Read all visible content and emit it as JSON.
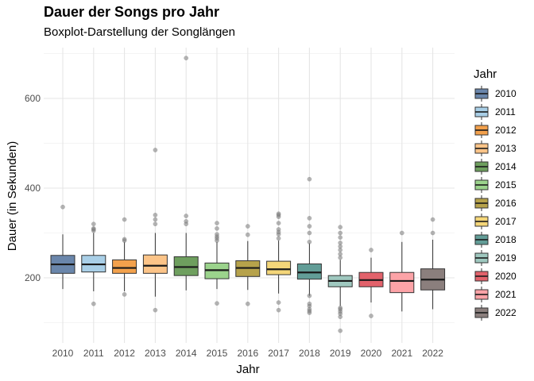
{
  "chart_data": {
    "type": "boxplot",
    "title": "Dauer der Songs pro Jahr",
    "subtitle": "Boxplot-Darstellung der Songlängen",
    "xlabel": "Jahr",
    "ylabel": "Dauer (in Sekunden)",
    "ylim": [
      70,
      710
    ],
    "yticks": [
      200,
      400,
      600
    ],
    "grid": true,
    "legend": {
      "title": "Jahr",
      "position": "right"
    },
    "categories": [
      "2010",
      "2011",
      "2012",
      "2013",
      "2014",
      "2015",
      "2016",
      "2017",
      "2018",
      "2019",
      "2020",
      "2021",
      "2022"
    ],
    "boxes": [
      {
        "name": "2010",
        "color": "#6a86ab",
        "lower": 175,
        "q1": 210,
        "median": 230,
        "q3": 250,
        "upper": 297,
        "outliers": [
          358
        ]
      },
      {
        "name": "2011",
        "color": "#a9cfe7",
        "lower": 170,
        "q1": 213,
        "median": 230,
        "q3": 250,
        "upper": 300,
        "outliers": [
          142,
          305,
          308,
          310,
          320
        ]
      },
      {
        "name": "2012",
        "color": "#f3a14c",
        "lower": 170,
        "q1": 210,
        "median": 222,
        "q3": 240,
        "upper": 280,
        "outliers": [
          163,
          283,
          286,
          330
        ]
      },
      {
        "name": "2013",
        "color": "#fcc488",
        "lower": 158,
        "q1": 210,
        "median": 227,
        "q3": 251,
        "upper": 300,
        "outliers": [
          128,
          320,
          330,
          340,
          485
        ]
      },
      {
        "name": "2014",
        "color": "#6e9f5e",
        "lower": 172,
        "q1": 205,
        "median": 224,
        "q3": 247,
        "upper": 300,
        "outliers": [
          320,
          326,
          338,
          690
        ]
      },
      {
        "name": "2015",
        "color": "#9bd38c",
        "lower": 175,
        "q1": 198,
        "median": 217,
        "q3": 233,
        "upper": 280,
        "outliers": [
          143,
          283,
          288,
          292,
          297,
          310,
          322
        ]
      },
      {
        "name": "2016",
        "color": "#b6a24b",
        "lower": 173,
        "q1": 203,
        "median": 222,
        "q3": 238,
        "upper": 282,
        "outliers": [
          142,
          296,
          315
        ]
      },
      {
        "name": "2017",
        "color": "#f4d679",
        "lower": 165,
        "q1": 207,
        "median": 219,
        "q3": 237,
        "upper": 283,
        "outliers": [
          128,
          145,
          288,
          297,
          302,
          308,
          322,
          336,
          340,
          343
        ]
      },
      {
        "name": "2018",
        "color": "#629d97",
        "lower": 160,
        "q1": 197,
        "median": 212,
        "q3": 231,
        "upper": 277,
        "outliers": [
          122,
          126,
          130,
          137,
          142,
          160,
          280,
          300,
          315,
          333,
          420
        ]
      },
      {
        "name": "2019",
        "color": "#9fc8bf",
        "lower": 137,
        "q1": 180,
        "median": 193,
        "q3": 205,
        "upper": 240,
        "outliers": [
          82,
          113,
          120,
          125,
          130,
          133,
          245,
          253,
          262,
          270,
          278,
          290,
          300,
          313
        ]
      },
      {
        "name": "2020",
        "color": "#e2626b",
        "lower": 145,
        "q1": 180,
        "median": 195,
        "q3": 212,
        "upper": 245,
        "outliers": [
          115,
          262
        ]
      },
      {
        "name": "2021",
        "color": "#fca3a7",
        "lower": 125,
        "q1": 167,
        "median": 193,
        "q3": 212,
        "upper": 280,
        "outliers": [
          300
        ]
      },
      {
        "name": "2022",
        "color": "#8b7f7d",
        "lower": 130,
        "q1": 173,
        "median": 196,
        "q3": 220,
        "upper": 285,
        "outliers": [
          300,
          330
        ]
      }
    ]
  }
}
